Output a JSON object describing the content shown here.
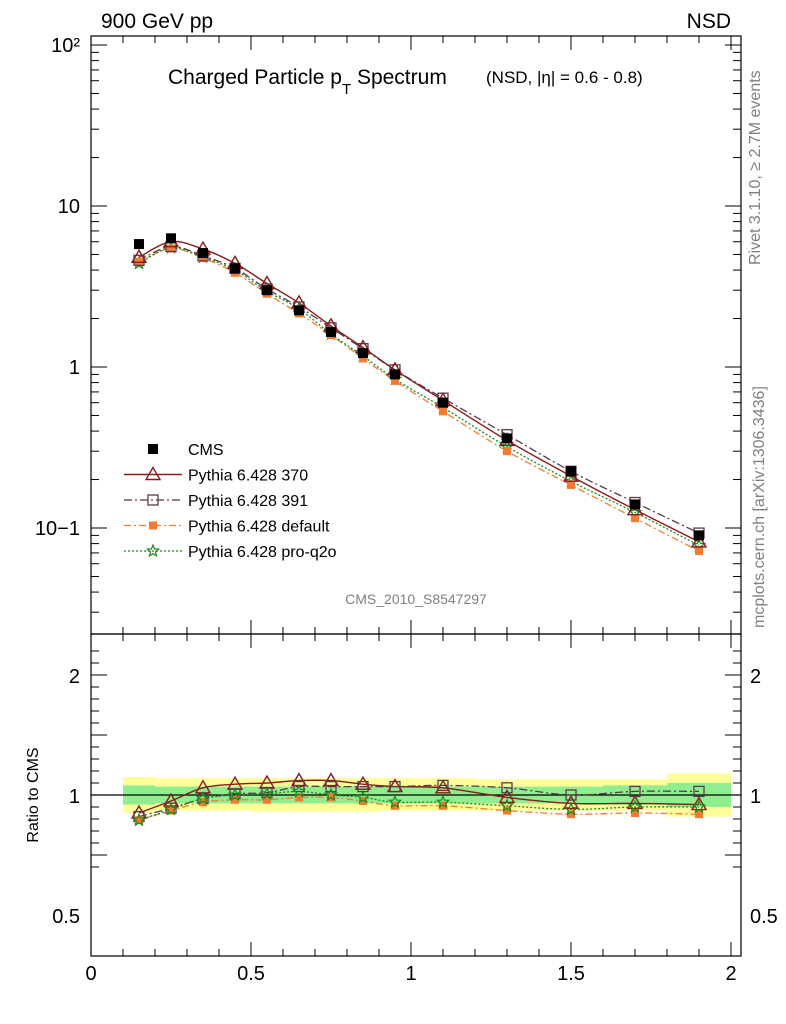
{
  "header": {
    "left": "900 GeV pp",
    "right": "NSD"
  },
  "title": {
    "main": "Charged Particle p",
    "sub": "T",
    "main2": " Spectrum",
    "detail": "(NSD, |η| = 0.6 - 0.8)"
  },
  "side_labels": {
    "rivet": "Rivet 3.1.10, ≥ 2.7M events",
    "mcplots": "mcplots.cern.ch [arXiv:1306.3436]"
  },
  "analysis_id": "CMS_2010_S8547297",
  "colors": {
    "cms": "#000000",
    "p370": "#8b1a1a",
    "p391": "#5a3a4a",
    "pdefault": "#f47c30",
    "pq2o": "#1a8a1a",
    "band_inner": "#90ee90",
    "band_outer": "#ffff99"
  },
  "chart_data": [
    {
      "type": "line",
      "scale": "log",
      "ylabel": "",
      "xlim": [
        0,
        2
      ],
      "ylim": [
        0.025,
        120
      ],
      "y_tick_labels": [
        "10−1",
        "1",
        "10",
        "10²"
      ],
      "x": [
        0.15,
        0.25,
        0.35,
        0.45,
        0.55,
        0.65,
        0.75,
        0.85,
        0.95,
        1.1,
        1.3,
        1.5,
        1.7,
        1.9
      ],
      "series": [
        {
          "name": "CMS",
          "key": "cms",
          "values": [
            5.8,
            6.3,
            5.1,
            4.1,
            3.0,
            2.25,
            1.65,
            1.22,
            0.9,
            0.6,
            0.36,
            0.225,
            0.14,
            0.09
          ]
        },
        {
          "name": "Pythia 6.428 370",
          "key": "p370",
          "values": [
            4.8,
            6.0,
            5.4,
            4.4,
            3.3,
            2.5,
            1.8,
            1.32,
            0.96,
            0.62,
            0.35,
            0.21,
            0.13,
            0.082
          ]
        },
        {
          "name": "Pythia 6.428 391",
          "key": "p391",
          "values": [
            4.6,
            5.6,
            4.9,
            4.1,
            3.05,
            2.36,
            1.75,
            1.3,
            0.96,
            0.64,
            0.38,
            0.225,
            0.144,
            0.093
          ]
        },
        {
          "name": "Pythia 6.428 default",
          "key": "pdefault",
          "values": [
            4.5,
            5.45,
            4.75,
            3.85,
            2.85,
            2.15,
            1.58,
            1.13,
            0.82,
            0.53,
            0.3,
            0.185,
            0.115,
            0.072
          ]
        },
        {
          "name": "Pythia 6.428 pro-q2o",
          "key": "pq2o",
          "values": [
            4.4,
            5.5,
            4.8,
            4.0,
            2.95,
            2.3,
            1.6,
            1.17,
            0.84,
            0.56,
            0.32,
            0.195,
            0.125,
            0.078
          ]
        }
      ]
    },
    {
      "type": "line",
      "ylabel": "Ratio to CMS",
      "xlim": [
        0,
        2
      ],
      "ylim": [
        0.35,
        2.3
      ],
      "y_tick_labels": [
        "0.5",
        "1",
        "2"
      ],
      "x_tick_labels": [
        "0",
        "0.5",
        "1",
        "1.5",
        "2"
      ],
      "x": [
        0.15,
        0.25,
        0.35,
        0.45,
        0.55,
        0.65,
        0.75,
        0.85,
        0.95,
        1.1,
        1.3,
        1.5,
        1.7,
        1.9
      ],
      "band_edges": [
        0.1,
        0.2,
        0.3,
        0.4,
        0.5,
        0.6,
        0.7,
        0.8,
        0.9,
        1.0,
        1.2,
        1.4,
        1.6,
        1.8,
        2.0
      ],
      "band_inner": [
        [
          0.92,
          1.08
        ],
        [
          0.93,
          1.07
        ],
        [
          0.93,
          1.07
        ],
        [
          0.93,
          1.07
        ],
        [
          0.93,
          1.07
        ],
        [
          0.93,
          1.07
        ],
        [
          0.93,
          1.07
        ],
        [
          0.93,
          1.07
        ],
        [
          0.93,
          1.07
        ],
        [
          0.93,
          1.07
        ],
        [
          0.93,
          1.07
        ],
        [
          0.93,
          1.07
        ],
        [
          0.92,
          1.08
        ],
        [
          0.9,
          1.1
        ]
      ],
      "band_outer": [
        [
          0.85,
          1.15
        ],
        [
          0.87,
          1.14
        ],
        [
          0.87,
          1.14
        ],
        [
          0.87,
          1.14
        ],
        [
          0.86,
          1.14
        ],
        [
          0.86,
          1.14
        ],
        [
          0.86,
          1.14
        ],
        [
          0.86,
          1.14
        ],
        [
          0.87,
          1.14
        ],
        [
          0.87,
          1.14
        ],
        [
          0.87,
          1.13
        ],
        [
          0.87,
          1.13
        ],
        [
          0.87,
          1.13
        ],
        [
          0.82,
          1.18
        ]
      ],
      "series": [
        {
          "name": "Pythia 6.428 370",
          "key": "p370",
          "values": [
            0.85,
            0.95,
            1.06,
            1.09,
            1.1,
            1.12,
            1.12,
            1.09,
            1.07,
            1.06,
            0.98,
            0.93,
            0.93,
            0.92
          ]
        },
        {
          "name": "Pythia 6.428 391",
          "key": "p391",
          "values": [
            0.82,
            0.89,
            0.97,
            1.01,
            1.02,
            1.07,
            1.07,
            1.07,
            1.07,
            1.08,
            1.06,
            1.0,
            1.03,
            1.03
          ]
        },
        {
          "name": "Pythia 6.428 default",
          "key": "pdefault",
          "values": [
            0.79,
            0.87,
            0.94,
            0.96,
            0.96,
            0.98,
            0.98,
            0.95,
            0.91,
            0.91,
            0.87,
            0.84,
            0.85,
            0.84
          ]
        },
        {
          "name": "Pythia 6.428 pro-q2o",
          "key": "pq2o",
          "values": [
            0.79,
            0.88,
            0.97,
            1.0,
            1.01,
            1.03,
            1.0,
            0.98,
            0.94,
            0.94,
            0.91,
            0.88,
            0.9,
            0.9
          ]
        }
      ]
    }
  ]
}
